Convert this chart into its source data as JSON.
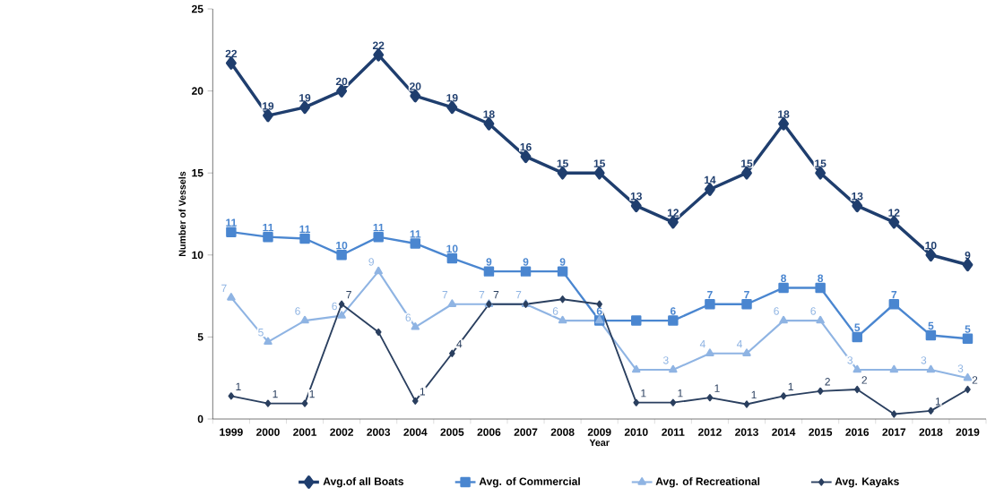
{
  "chart_data": {
    "type": "line",
    "xlabel": "Year",
    "ylabel": "Number of Vessels",
    "categories": [
      "1999",
      "2000",
      "2001",
      "2002",
      "2003",
      "2004",
      "2005",
      "2006",
      "2007",
      "2008",
      "2009",
      "2010",
      "2011",
      "2012",
      "2013",
      "2014",
      "2015",
      "2016",
      "2017",
      "2018",
      "2019"
    ],
    "ylim": [
      0,
      25
    ],
    "yticks": [
      0,
      5,
      10,
      15,
      20,
      25
    ],
    "grid": false,
    "legend": "bottom",
    "series": [
      {
        "name": "Avg.of all Boats",
        "color": "#1f3e6e",
        "marker": "diamond",
        "values": [
          21.7,
          18.5,
          19,
          20,
          22.2,
          19.7,
          19,
          18,
          16,
          15,
          15,
          13,
          12,
          14,
          15,
          18,
          15,
          13,
          12,
          10,
          9.4
        ],
        "value_labels": [
          "22",
          "19",
          "19",
          "20",
          "22",
          "20",
          "19",
          "18",
          "16",
          "15",
          "15",
          "13",
          "12",
          "14",
          "15",
          "18",
          "15",
          "13",
          "12",
          "10",
          "9"
        ]
      },
      {
        "name": "Avg. of Commercial",
        "color": "#4a86d0",
        "marker": "square",
        "values": [
          11.4,
          11.1,
          11,
          10,
          11.1,
          10.7,
          9.8,
          9,
          9,
          9,
          6,
          6,
          6,
          7,
          7,
          8,
          8,
          5,
          7,
          5.1,
          4.9
        ],
        "value_labels": [
          "11",
          "11",
          "11",
          "10",
          "11",
          "11",
          "10",
          "9",
          "9",
          "9",
          "6",
          null,
          "6",
          "7",
          "7",
          "8",
          "8",
          "5",
          "7",
          "5",
          "5"
        ]
      },
      {
        "name": "Avg. of Recreational",
        "color": "#8fb4e3",
        "marker": "triangle",
        "values": [
          7.4,
          4.7,
          6,
          6.3,
          9,
          5.6,
          7,
          7,
          7,
          6,
          6,
          3,
          3,
          4,
          4,
          6,
          6,
          3,
          3,
          3,
          2.5
        ],
        "value_labels": [
          "7",
          "5",
          "6",
          "6",
          "9",
          "6",
          "7",
          "7",
          "7",
          "6",
          null,
          null,
          "3",
          "4",
          "4",
          "6",
          "6",
          "3",
          null,
          "3",
          "3"
        ]
      },
      {
        "name": "Avg. Kayaks",
        "color": "#2a3f5f",
        "marker": "diamond",
        "values": [
          1.4,
          0.95,
          0.95,
          7,
          5.3,
          1.1,
          4,
          7,
          7,
          7.3,
          7,
          1,
          1,
          1.3,
          0.9,
          1.4,
          1.7,
          1.8,
          0.3,
          0.5,
          1.8
        ],
        "value_labels": [
          "1",
          "1",
          "1",
          "7",
          null,
          "1",
          "4",
          "7",
          null,
          null,
          null,
          "1",
          "1",
          "1",
          "1",
          "1",
          "2",
          "2",
          null,
          "1",
          "2"
        ]
      }
    ]
  }
}
